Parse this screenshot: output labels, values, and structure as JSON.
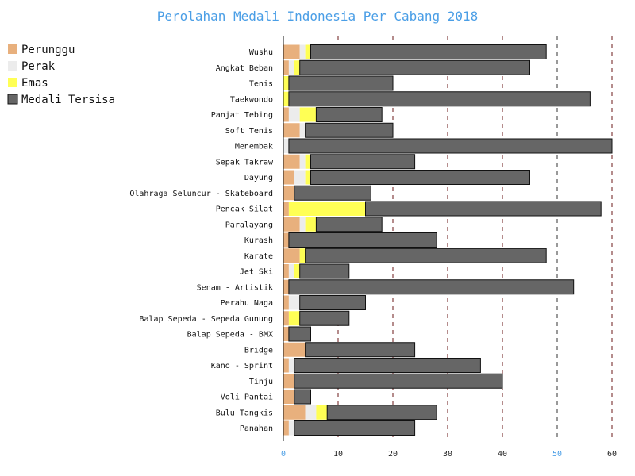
{
  "chart_data": {
    "type": "bar",
    "stacked": true,
    "orientation": "horizontal",
    "title": "Perolahan Medali Indonesia Per Cabang 2018",
    "xlabel": "",
    "ylabel": "",
    "xlim": [
      0,
      60
    ],
    "xticks": [
      0,
      10,
      20,
      30,
      40,
      50,
      60
    ],
    "grid": "x dashed",
    "legend_position": "top-left",
    "categories": [
      "Wushu",
      "Angkat Beban",
      "Tenis",
      "Taekwondo",
      "Panjat Tebing",
      "Soft Tenis",
      "Menembak",
      "Sepak Takraw",
      "Dayung",
      "Olahraga Seluncur - Skateboard",
      "Pencak Silat",
      "Paralayang",
      "Kurash",
      "Karate",
      "Jet Ski",
      "Senam - Artistik",
      "Perahu Naga",
      "Balap Sepeda - Sepeda Gunung",
      "Balap Sepeda - BMX",
      "Bridge",
      "Kano - Sprint",
      "Tinju",
      "Voli Pantai",
      "Bulu Tangkis",
      "Panahan"
    ],
    "series": [
      {
        "name": "Perunggu",
        "color": "#e8b07d",
        "values": [
          3,
          1,
          0,
          0,
          1,
          3,
          0,
          3,
          2,
          2,
          1,
          3,
          1,
          3,
          1,
          1,
          1,
          1,
          1,
          4,
          1,
          2,
          2,
          4,
          1
        ]
      },
      {
        "name": "Perak",
        "color": "#ececec",
        "values": [
          1,
          1,
          0,
          0,
          2,
          1,
          1,
          1,
          2,
          0,
          0,
          1,
          0,
          0,
          1,
          0,
          2,
          0,
          0,
          0,
          1,
          0,
          0,
          2,
          1
        ]
      },
      {
        "name": "Emas",
        "color": "#ffff55",
        "values": [
          1,
          1,
          1,
          1,
          3,
          0,
          0,
          1,
          1,
          0,
          14,
          2,
          0,
          1,
          1,
          0,
          0,
          2,
          0,
          0,
          0,
          0,
          0,
          2,
          0
        ]
      },
      {
        "name": "Medali Tersisa",
        "color": "#666666",
        "values": [
          43,
          42,
          19,
          55,
          12,
          16,
          59,
          19,
          40,
          14,
          43,
          12,
          27,
          44,
          9,
          52,
          12,
          9,
          4,
          20,
          34,
          38,
          3,
          20,
          22
        ]
      }
    ]
  }
}
